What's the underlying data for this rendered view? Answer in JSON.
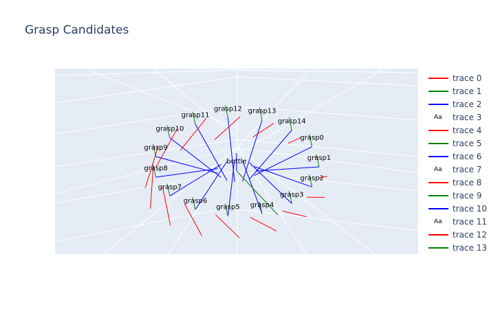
{
  "title": "Grasp Candidates",
  "colors": {
    "red": "#ff0000",
    "green": "#008000",
    "blue": "#0000ff",
    "scene_bg": "#e5ecf6",
    "grid": "#ffffff",
    "text": "#2a3f5f"
  },
  "legend": [
    {
      "label": "trace 0",
      "kind": "line",
      "color": "#ff0000"
    },
    {
      "label": "trace 1",
      "kind": "line",
      "color": "#008000"
    },
    {
      "label": "trace 2",
      "kind": "line",
      "color": "#0000ff"
    },
    {
      "label": "trace 3",
      "kind": "text",
      "symbol": "Aa"
    },
    {
      "label": "trace 4",
      "kind": "line",
      "color": "#ff0000"
    },
    {
      "label": "trace 5",
      "kind": "line",
      "color": "#008000"
    },
    {
      "label": "trace 6",
      "kind": "line",
      "color": "#0000ff"
    },
    {
      "label": "trace 7",
      "kind": "text",
      "symbol": "Aa"
    },
    {
      "label": "trace 8",
      "kind": "line",
      "color": "#ff0000"
    },
    {
      "label": "trace 9",
      "kind": "line",
      "color": "#008000"
    },
    {
      "label": "trace 10",
      "kind": "line",
      "color": "#0000ff"
    },
    {
      "label": "trace 11",
      "kind": "text",
      "symbol": "Aa"
    },
    {
      "label": "trace 12",
      "kind": "line",
      "color": "#ff0000"
    },
    {
      "label": "trace 13",
      "kind": "line",
      "color": "#008000"
    }
  ],
  "chart_data": {
    "type": "scatter3d",
    "title": "Grasp Candidates",
    "center_label": "bottle",
    "grasps": [
      {
        "label": "grasp1",
        "angle_deg": 0
      },
      {
        "label": "grasp2",
        "angle_deg": 24
      },
      {
        "label": "grasp3",
        "angle_deg": 48
      },
      {
        "label": "grasp4",
        "angle_deg": 72
      },
      {
        "label": "grasp5",
        "angle_deg": 96
      },
      {
        "label": "grasp6",
        "angle_deg": 120
      },
      {
        "label": "grasp7",
        "angle_deg": 144
      },
      {
        "label": "grasp8",
        "angle_deg": 168
      },
      {
        "label": "grasp9",
        "angle_deg": 192
      },
      {
        "label": "grasp10",
        "angle_deg": 216
      },
      {
        "label": "grasp11",
        "angle_deg": 240
      },
      {
        "label": "grasp12",
        "angle_deg": 264
      },
      {
        "label": "grasp13",
        "angle_deg": 288
      },
      {
        "label": "grasp14",
        "angle_deg": 312
      },
      {
        "label": "grasp0",
        "angle_deg": 336
      }
    ],
    "series_colors": {
      "approach": "#0000ff",
      "grip": "#ff0000",
      "up": "#008000"
    }
  }
}
